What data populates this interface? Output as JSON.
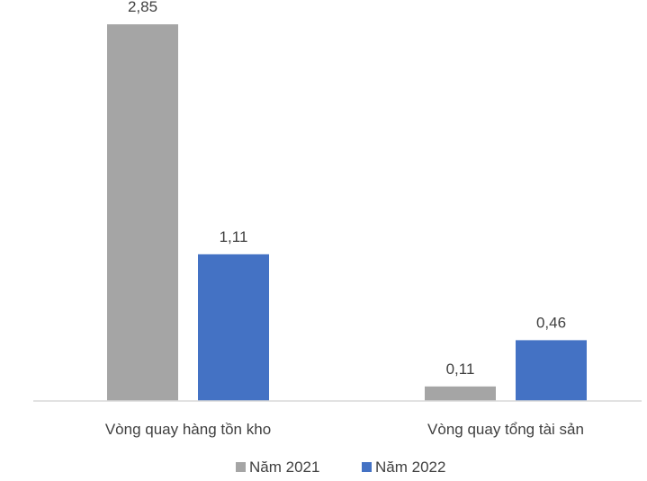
{
  "chart_data": {
    "type": "bar",
    "categories": [
      "Vòng quay hàng tồn kho",
      "Vòng quay tổng tài sản"
    ],
    "series": [
      {
        "name": "Năm 2021",
        "values": [
          2.85,
          0.11
        ],
        "labels": [
          "2,85",
          "0,11"
        ],
        "color": "#A5A5A5"
      },
      {
        "name": "Năm 2022",
        "values": [
          1.11,
          0.46
        ],
        "labels": [
          "1,11",
          "0,46"
        ],
        "color": "#4472C4"
      }
    ],
    "ylim": [
      0,
      3.0
    ],
    "grid": false,
    "legend": "bottom",
    "axis_color": "#D9D9D9"
  }
}
